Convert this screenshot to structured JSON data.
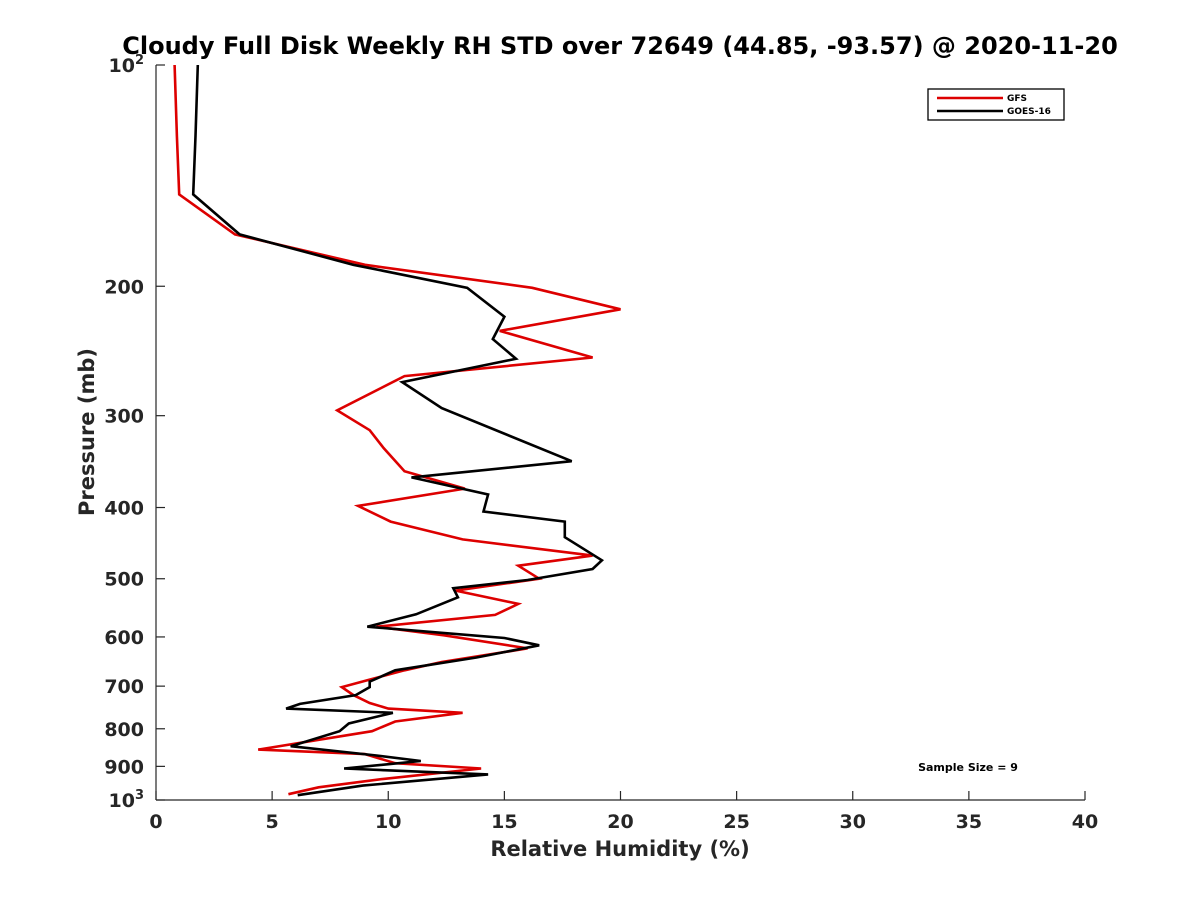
{
  "chart_data": {
    "type": "line",
    "title": "Cloudy Full Disk Weekly RH STD over 72649 (44.85, -93.57) @ 2020-11-20",
    "xlabel": "Relative Humidity (%)",
    "ylabel": "Pressure (mb)",
    "xlim": [
      0,
      40
    ],
    "ylim": [
      100,
      1000
    ],
    "y_scale": "log",
    "y_reversed": true,
    "grid": false,
    "legend_position": "top-right",
    "x_ticks": [
      {
        "value": 0,
        "label": "0"
      },
      {
        "value": 5,
        "label": "5"
      },
      {
        "value": 10,
        "label": "10"
      },
      {
        "value": 15,
        "label": "15"
      },
      {
        "value": 20,
        "label": "20"
      },
      {
        "value": 25,
        "label": "25"
      },
      {
        "value": 30,
        "label": "30"
      },
      {
        "value": 35,
        "label": "35"
      },
      {
        "value": 40,
        "label": "40"
      }
    ],
    "y_ticks": [
      {
        "value": 100,
        "base": "10",
        "exp": "2"
      },
      {
        "value": 200,
        "label": "200"
      },
      {
        "value": 300,
        "label": "300"
      },
      {
        "value": 400,
        "label": "400"
      },
      {
        "value": 500,
        "label": "500"
      },
      {
        "value": 600,
        "label": "600"
      },
      {
        "value": 700,
        "label": "700"
      },
      {
        "value": 800,
        "label": "800"
      },
      {
        "value": 900,
        "label": "900"
      },
      {
        "value": 1000,
        "base": "10",
        "exp": "3"
      }
    ],
    "annotation": "Sample Size = 9",
    "series": [
      {
        "name": "GFS",
        "color": "#dd0000",
        "points": [
          [
            0.8,
            100
          ],
          [
            0.9,
            125
          ],
          [
            1.0,
            150
          ],
          [
            3.4,
            170
          ],
          [
            9.0,
            187
          ],
          [
            16.2,
            201
          ],
          [
            20.0,
            215
          ],
          [
            14.8,
            230
          ],
          [
            18.8,
            250
          ],
          [
            10.7,
            265
          ],
          [
            7.8,
            295
          ],
          [
            9.2,
            314
          ],
          [
            9.8,
            332
          ],
          [
            10.7,
            357
          ],
          [
            13.3,
            377
          ],
          [
            8.7,
            398
          ],
          [
            10.1,
            418
          ],
          [
            13.2,
            442
          ],
          [
            18.8,
            465
          ],
          [
            15.6,
            480
          ],
          [
            16.5,
            500
          ],
          [
            12.9,
            519
          ],
          [
            15.6,
            541
          ],
          [
            14.6,
            560
          ],
          [
            9.5,
            581
          ],
          [
            12.4,
            597
          ],
          [
            16.0,
            622
          ],
          [
            12.3,
            649
          ],
          [
            10.7,
            666
          ],
          [
            9.1,
            687
          ],
          [
            8.0,
            702
          ],
          [
            8.5,
            720
          ],
          [
            9.2,
            738
          ],
          [
            10.0,
            751
          ],
          [
            13.2,
            761
          ],
          [
            10.3,
            782
          ],
          [
            9.3,
            806
          ],
          [
            4.4,
            854
          ],
          [
            9.0,
            866
          ],
          [
            10.3,
            891
          ],
          [
            14.0,
            906
          ],
          [
            9.8,
            936
          ],
          [
            7.0,
            961
          ],
          [
            5.7,
            982
          ]
        ]
      },
      {
        "name": "GOES-16",
        "color": "#000000",
        "points": [
          [
            1.8,
            100
          ],
          [
            1.7,
            125
          ],
          [
            1.6,
            150
          ],
          [
            3.6,
            170
          ],
          [
            8.5,
            187
          ],
          [
            13.4,
            201
          ],
          [
            15.0,
            220
          ],
          [
            14.5,
            236
          ],
          [
            15.5,
            251
          ],
          [
            10.6,
            270
          ],
          [
            12.3,
            293
          ],
          [
            17.9,
            346
          ],
          [
            11.0,
            364
          ],
          [
            14.3,
            384
          ],
          [
            14.1,
            405
          ],
          [
            17.6,
            418
          ],
          [
            17.6,
            439
          ],
          [
            19.2,
            472
          ],
          [
            18.8,
            485
          ],
          [
            16.0,
            502
          ],
          [
            12.8,
            515
          ],
          [
            13.0,
            530
          ],
          [
            11.2,
            559
          ],
          [
            9.1,
            581
          ],
          [
            15.0,
            602
          ],
          [
            16.5,
            616
          ],
          [
            13.8,
            640
          ],
          [
            10.3,
            666
          ],
          [
            9.2,
            690
          ],
          [
            9.2,
            702
          ],
          [
            8.6,
            720
          ],
          [
            6.2,
            740
          ],
          [
            5.6,
            751
          ],
          [
            10.2,
            761
          ],
          [
            8.3,
            787
          ],
          [
            7.9,
            806
          ],
          [
            5.8,
            845
          ],
          [
            9.5,
            870
          ],
          [
            11.4,
            885
          ],
          [
            8.1,
            906
          ],
          [
            14.3,
            923
          ],
          [
            8.9,
            956
          ],
          [
            6.1,
            985
          ]
        ]
      }
    ]
  }
}
